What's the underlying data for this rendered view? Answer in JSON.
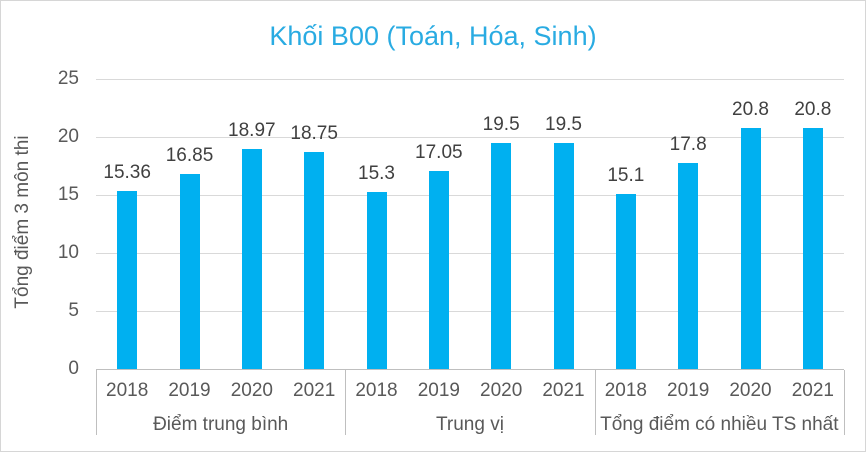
{
  "title": "Khối B00 (Toán, Hóa, Sinh)",
  "y_axis_title": "Tổng điểm 3 môn thi",
  "chart_data": {
    "type": "bar",
    "title": "Khối B00 (Toán, Hóa, Sinh)",
    "ylabel": "Tổng điểm 3 môn thi",
    "xlabel": "",
    "ylim": [
      0,
      25
    ],
    "yticks": [
      0,
      5,
      10,
      15,
      20,
      25
    ],
    "grid": true,
    "legend": "none",
    "bar_color": "#00B0F0",
    "categories": [
      "2018",
      "2019",
      "2020",
      "2021"
    ],
    "groups": [
      {
        "label": "Điểm trung bình",
        "values": [
          15.36,
          16.85,
          18.97,
          18.75
        ]
      },
      {
        "label": "Trung vị",
        "values": [
          15.3,
          17.05,
          19.5,
          19.5
        ]
      },
      {
        "label": "Tổng điểm có nhiều TS nhất",
        "values": [
          15.1,
          17.8,
          20.8,
          20.8
        ]
      }
    ]
  },
  "colors": {
    "title": "#29ABE2",
    "bar": "#00B0F0",
    "axis_text": "#595959",
    "data_label": "#404040",
    "gridline": "#D9D9D9",
    "axis_line": "#BFBFBF"
  }
}
